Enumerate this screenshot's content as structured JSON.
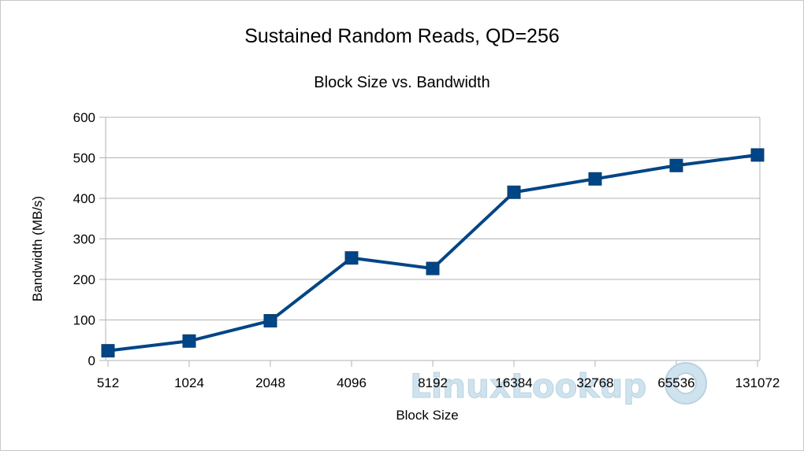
{
  "chart_data": {
    "type": "line",
    "title": "Sustained Random Reads, QD=256",
    "subtitle": "Block Size vs. Bandwidth",
    "xlabel": "Block Size",
    "ylabel": "Bandwidth (MB/s)",
    "categories": [
      "512",
      "1024",
      "2048",
      "4096",
      "8192",
      "16384",
      "32768",
      "65536",
      "131072"
    ],
    "series": [
      {
        "values": [
          24,
          48,
          98,
          253,
          227,
          415,
          448,
          481,
          507
        ]
      }
    ],
    "ylim": [
      0,
      600
    ],
    "yticks": [
      0,
      100,
      200,
      300,
      400,
      500,
      600
    ],
    "grid": "horizontal",
    "legend": "none",
    "line_color": "#004586",
    "marker": "square"
  },
  "watermark": {
    "text": "LinuxLookup"
  }
}
